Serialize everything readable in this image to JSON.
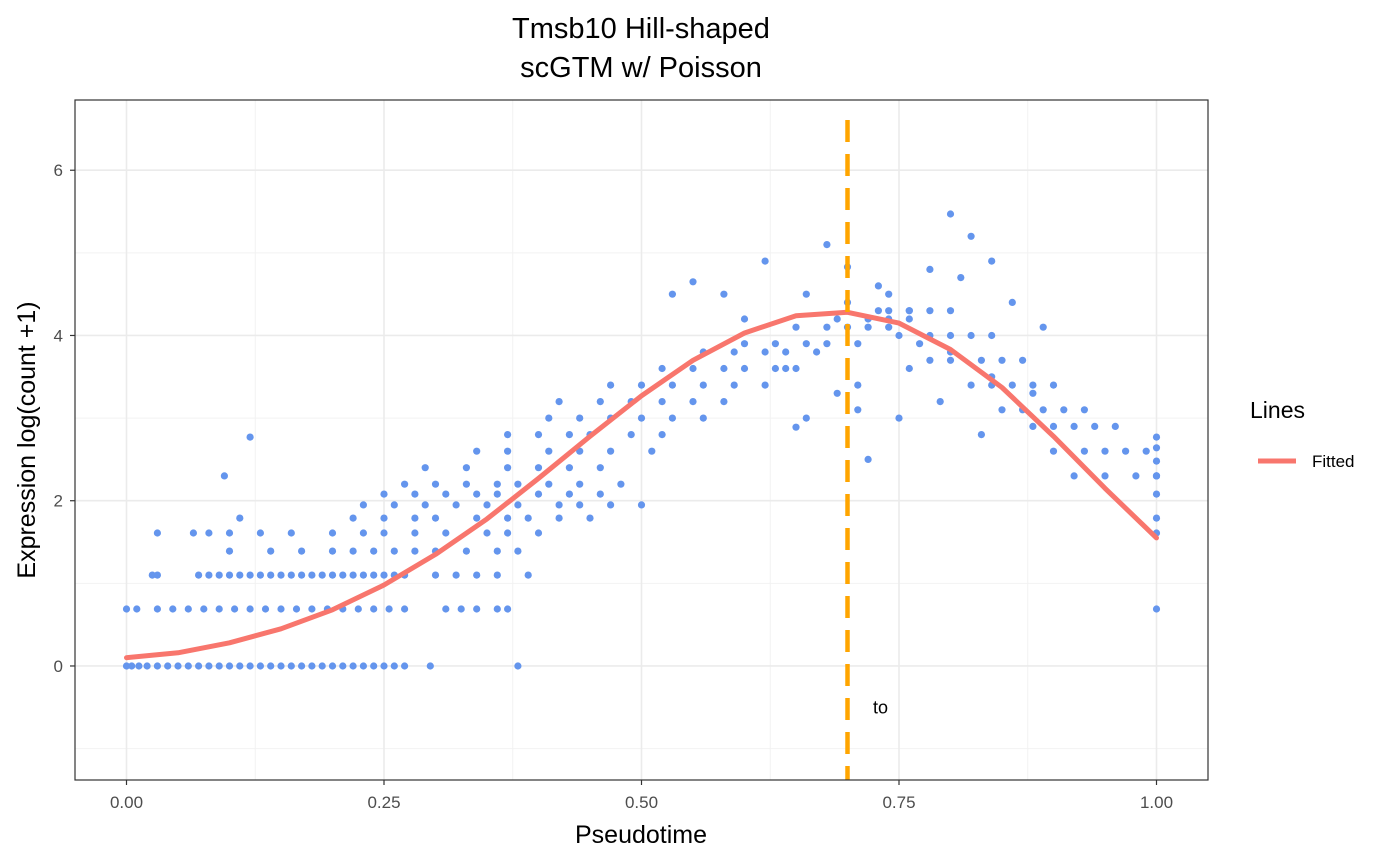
{
  "chart_data": {
    "type": "scatter",
    "title": [
      "Tmsb10 Hill-shaped",
      "scGTM w/ Poisson"
    ],
    "xlabel": "Pseudotime",
    "ylabel": "Expression log(count +1)",
    "xlim": [
      -0.05,
      1.05
    ],
    "ylim": [
      -1.38,
      6.85
    ],
    "x_ticks": [
      0.0,
      0.25,
      0.5,
      0.75,
      1.0
    ],
    "x_tick_labels": [
      "0.00",
      "0.25",
      "0.50",
      "0.75",
      "1.00"
    ],
    "y_ticks": [
      0,
      2,
      4,
      6
    ],
    "y_tick_labels": [
      "0",
      "2",
      "4",
      "6"
    ],
    "grid": true,
    "colors": {
      "points": "#6495ED",
      "fitted": "#F8766D",
      "vline": "#FFA500"
    },
    "points_x": [
      0.0,
      0.005,
      0.012,
      0.02,
      0.03,
      0.04,
      0.05,
      0.06,
      0.07,
      0.08,
      0.09,
      0.1,
      0.11,
      0.12,
      0.13,
      0.14,
      0.15,
      0.16,
      0.17,
      0.18,
      0.19,
      0.2,
      0.21,
      0.22,
      0.23,
      0.24,
      0.25,
      0.26,
      0.27,
      0.295,
      0.38,
      0.0,
      0.01,
      0.03,
      0.045,
      0.06,
      0.075,
      0.09,
      0.105,
      0.12,
      0.135,
      0.15,
      0.165,
      0.18,
      0.195,
      0.21,
      0.225,
      0.24,
      0.255,
      0.27,
      0.31,
      0.325,
      0.34,
      0.36,
      0.37,
      0.025,
      0.03,
      0.07,
      0.08,
      0.09,
      0.1,
      0.11,
      0.12,
      0.13,
      0.14,
      0.15,
      0.16,
      0.17,
      0.18,
      0.19,
      0.2,
      0.21,
      0.22,
      0.23,
      0.24,
      0.25,
      0.26,
      0.27,
      0.3,
      0.32,
      0.34,
      0.36,
      0.39,
      0.1,
      0.14,
      0.17,
      0.2,
      0.22,
      0.24,
      0.26,
      0.28,
      0.3,
      0.33,
      0.36,
      0.38,
      0.03,
      0.065,
      0.08,
      0.1,
      0.13,
      0.16,
      0.2,
      0.23,
      0.25,
      0.28,
      0.31,
      0.35,
      0.37,
      0.4,
      0.11,
      0.22,
      0.25,
      0.28,
      0.3,
      0.34,
      0.37,
      0.39,
      0.42,
      0.45,
      0.095,
      0.23,
      0.26,
      0.29,
      0.32,
      0.35,
      0.38,
      0.42,
      0.44,
      0.47,
      0.5,
      0.12,
      0.25,
      0.28,
      0.31,
      0.34,
      0.36,
      0.4,
      0.43,
      0.46,
      0.27,
      0.3,
      0.33,
      0.36,
      0.38,
      0.41,
      0.44,
      0.48,
      0.29,
      0.33,
      0.37,
      0.4,
      0.43,
      0.46,
      0.34,
      0.37,
      0.41,
      0.44,
      0.47,
      0.51,
      0.37,
      0.4,
      0.43,
      0.45,
      0.49,
      0.52,
      0.41,
      0.44,
      0.47,
      0.5,
      0.53,
      0.56,
      0.42,
      0.46,
      0.49,
      0.52,
      0.55,
      0.58,
      0.47,
      0.5,
      0.53,
      0.56,
      0.59,
      0.62,
      0.52,
      0.55,
      0.58,
      0.6,
      0.63,
      0.65,
      0.56,
      0.59,
      0.62,
      0.64,
      0.67,
      0.6,
      0.63,
      0.66,
      0.68,
      0.71,
      0.65,
      0.68,
      0.7,
      0.72,
      0.74,
      0.69,
      0.72,
      0.74,
      0.76,
      0.73,
      0.74,
      0.76,
      0.78,
      0.8,
      0.75,
      0.78,
      0.8,
      0.82,
      0.84,
      0.78,
      0.8,
      0.83,
      0.85,
      0.87,
      0.82,
      0.84,
      0.86,
      0.88,
      0.9,
      0.85,
      0.87,
      0.89,
      0.91,
      0.93,
      0.88,
      0.9,
      0.92,
      0.94,
      0.96,
      0.9,
      0.93,
      0.95,
      0.97,
      0.99,
      0.92,
      0.95,
      0.98,
      1.0,
      1.0,
      1.0,
      1.0,
      1.0,
      1.0,
      1.0,
      1.0,
      1.0,
      1.0,
      0.65,
      0.7,
      0.73,
      0.68,
      0.62,
      0.58,
      0.55,
      0.53,
      0.76,
      0.8,
      0.84,
      0.66,
      0.69,
      0.71,
      0.75,
      0.79,
      0.83,
      0.72,
      0.77,
      0.81,
      0.86,
      0.89,
      0.64,
      0.7,
      0.74,
      0.78,
      0.82,
      0.6,
      0.66,
      0.71,
      0.76,
      0.8,
      0.84,
      0.88
    ],
    "points_y": [
      0.0,
      0.0,
      0.0,
      0.0,
      0.0,
      0.0,
      0.0,
      0.0,
      0.0,
      0.0,
      0.0,
      0.0,
      0.0,
      0.0,
      0.0,
      0.0,
      0.0,
      0.0,
      0.0,
      0.0,
      0.0,
      0.0,
      0.0,
      0.0,
      0.0,
      0.0,
      0.0,
      0.0,
      0.0,
      0.0,
      0.0,
      0.69,
      0.69,
      0.69,
      0.69,
      0.69,
      0.69,
      0.69,
      0.69,
      0.69,
      0.69,
      0.69,
      0.69,
      0.69,
      0.69,
      0.69,
      0.69,
      0.69,
      0.69,
      0.69,
      0.69,
      0.69,
      0.69,
      0.69,
      0.69,
      1.1,
      1.1,
      1.1,
      1.1,
      1.1,
      1.1,
      1.1,
      1.1,
      1.1,
      1.1,
      1.1,
      1.1,
      1.1,
      1.1,
      1.1,
      1.1,
      1.1,
      1.1,
      1.1,
      1.1,
      1.1,
      1.1,
      1.1,
      1.1,
      1.1,
      1.1,
      1.1,
      1.1,
      1.39,
      1.39,
      1.39,
      1.39,
      1.39,
      1.39,
      1.39,
      1.39,
      1.39,
      1.39,
      1.39,
      1.39,
      1.61,
      1.61,
      1.61,
      1.61,
      1.61,
      1.61,
      1.61,
      1.61,
      1.61,
      1.61,
      1.61,
      1.61,
      1.61,
      1.61,
      1.79,
      1.79,
      1.79,
      1.79,
      1.79,
      1.79,
      1.79,
      1.79,
      1.79,
      1.79,
      2.3,
      1.95,
      1.95,
      1.95,
      1.95,
      1.95,
      1.95,
      1.95,
      1.95,
      1.95,
      1.95,
      2.77,
      2.08,
      2.08,
      2.08,
      2.08,
      2.08,
      2.08,
      2.08,
      2.08,
      2.2,
      2.2,
      2.2,
      2.2,
      2.2,
      2.2,
      2.2,
      2.2,
      2.4,
      2.4,
      2.4,
      2.4,
      2.4,
      2.4,
      2.6,
      2.6,
      2.6,
      2.6,
      2.6,
      2.6,
      2.8,
      2.8,
      2.8,
      2.8,
      2.8,
      2.8,
      3.0,
      3.0,
      3.0,
      3.0,
      3.0,
      3.0,
      3.2,
      3.2,
      3.2,
      3.2,
      3.2,
      3.2,
      3.4,
      3.4,
      3.4,
      3.4,
      3.4,
      3.4,
      3.6,
      3.6,
      3.6,
      3.6,
      3.6,
      3.6,
      3.8,
      3.8,
      3.8,
      3.8,
      3.8,
      3.9,
      3.9,
      3.9,
      3.9,
      3.9,
      4.1,
      4.1,
      4.1,
      4.1,
      4.1,
      4.2,
      4.2,
      4.2,
      4.2,
      4.3,
      4.3,
      4.3,
      4.3,
      4.3,
      4.0,
      4.0,
      4.0,
      4.0,
      4.0,
      3.7,
      3.7,
      3.7,
      3.7,
      3.7,
      3.4,
      3.4,
      3.4,
      3.4,
      3.4,
      3.1,
      3.1,
      3.1,
      3.1,
      3.1,
      2.9,
      2.9,
      2.9,
      2.9,
      2.9,
      2.6,
      2.6,
      2.6,
      2.6,
      2.6,
      2.3,
      2.3,
      2.3,
      2.3,
      2.3,
      0.69,
      1.61,
      1.79,
      2.08,
      2.3,
      2.48,
      2.64,
      2.77,
      2.89,
      4.83,
      4.6,
      5.1,
      4.9,
      4.5,
      4.65,
      4.5,
      4.3,
      5.47,
      4.9,
      4.5,
      3.3,
      3.1,
      3.0,
      3.2,
      2.8,
      2.5,
      3.9,
      4.7,
      4.4,
      4.1,
      3.6,
      4.4,
      4.5,
      4.8,
      5.2,
      4.2,
      3.0,
      3.4,
      3.6,
      3.8,
      3.5,
      3.3,
      3.2
    ],
    "series": [
      {
        "name": "Fitted",
        "x": [
          0.0,
          0.05,
          0.1,
          0.15,
          0.2,
          0.25,
          0.3,
          0.35,
          0.4,
          0.45,
          0.5,
          0.55,
          0.6,
          0.65,
          0.7,
          0.75,
          0.8,
          0.85,
          0.9,
          0.95,
          1.0
        ],
        "y": [
          0.1,
          0.16,
          0.28,
          0.45,
          0.68,
          0.98,
          1.35,
          1.78,
          2.27,
          2.78,
          3.27,
          3.7,
          4.03,
          4.24,
          4.28,
          4.15,
          3.83,
          3.37,
          2.78,
          2.15,
          1.55
        ]
      }
    ],
    "vline": {
      "x": 0.7
    },
    "annotation": {
      "text": "to",
      "x": 0.732,
      "y": -0.52
    },
    "legend": {
      "title": "Lines",
      "position": "right",
      "items": [
        "Fitted"
      ]
    }
  }
}
